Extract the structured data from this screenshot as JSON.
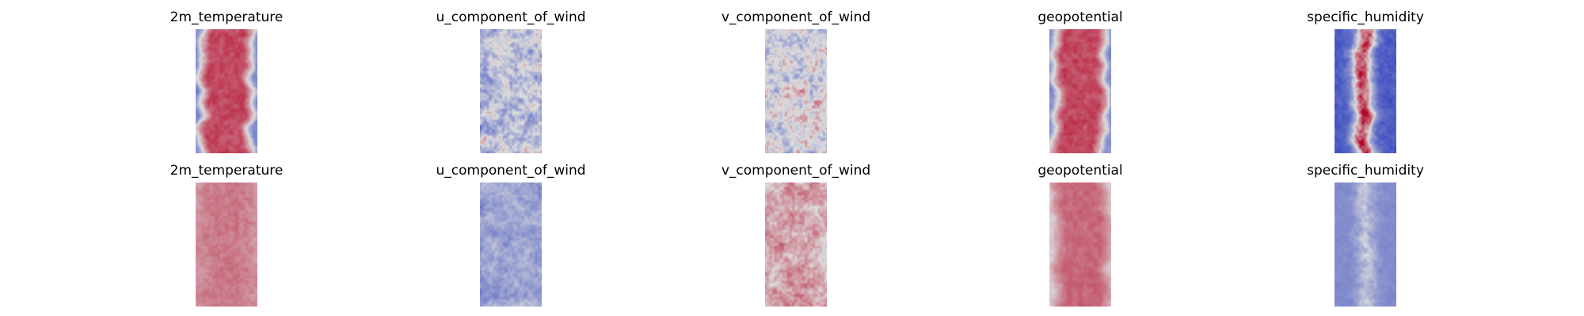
{
  "chart_data": {
    "type": "heatmap",
    "colormap": "coolwarm",
    "colors": {
      "cold": "#3b4cc0",
      "neutral": "#dddddd",
      "warm": "#b40426"
    },
    "axes_visible": false,
    "rows": [
      {
        "panels": [
          {
            "title": "2m_temperature",
            "pattern": "band",
            "mean": 0.84,
            "edge": 0.22,
            "noise": 0.08
          },
          {
            "title": "u_component_of_wind",
            "pattern": "turbulent",
            "mean": 0.4,
            "edge": 0.4,
            "noise": 0.28
          },
          {
            "title": "v_component_of_wind",
            "pattern": "turbulent",
            "mean": 0.5,
            "edge": 0.5,
            "noise": 0.3
          },
          {
            "title": "geopotential",
            "pattern": "band",
            "mean": 0.84,
            "edge": 0.22,
            "noise": 0.08
          },
          {
            "title": "specific_humidity",
            "pattern": "streak",
            "mean": 0.88,
            "edge": 0.06,
            "noise": 0.18
          }
        ]
      },
      {
        "panels": [
          {
            "title": "2m_temperature",
            "pattern": "flat",
            "mean": 0.73,
            "edge": 0.66,
            "noise": 0.06
          },
          {
            "title": "u_component_of_wind",
            "pattern": "turbulent",
            "mean": 0.3,
            "edge": 0.28,
            "noise": 0.14
          },
          {
            "title": "v_component_of_wind",
            "pattern": "turbulent",
            "mean": 0.66,
            "edge": 0.6,
            "noise": 0.18
          },
          {
            "title": "geopotential",
            "pattern": "band",
            "mean": 0.77,
            "edge": 0.55,
            "noise": 0.05
          },
          {
            "title": "specific_humidity",
            "pattern": "streak",
            "mean": 0.4,
            "edge": 0.22,
            "noise": 0.09
          }
        ]
      }
    ]
  }
}
